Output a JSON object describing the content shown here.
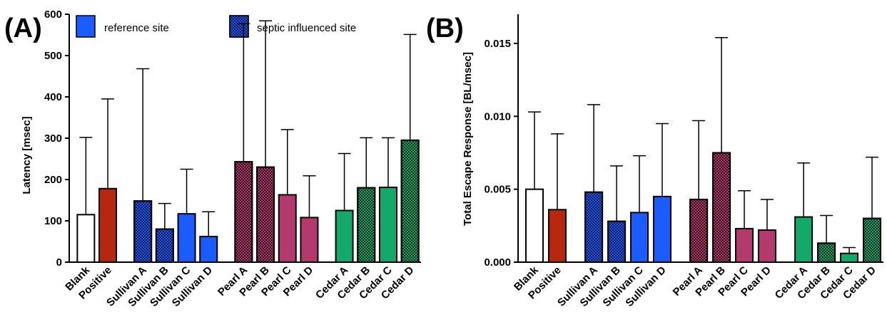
{
  "colors": {
    "blank": "#ffffff",
    "positive": "#b5270f",
    "sullivan": "#1a5cff",
    "pearl": "#b23a6c",
    "cedar": "#14a86b"
  },
  "legend": {
    "reference": "reference site",
    "septic": "septic influenced site"
  },
  "chart_data": [
    {
      "type": "bar",
      "panel": "(A)",
      "ylabel": "Latency [msec]",
      "ylim": [
        0,
        600
      ],
      "yticks": [
        "0",
        "100",
        "200",
        "300",
        "400",
        "500",
        "600"
      ],
      "categories": [
        "Blank",
        "Positive",
        "Sullivan A",
        "Sullivan B",
        "Sullivan C",
        "Sullivan D",
        "Pearl A",
        "Pearl B",
        "Pearl C",
        "Pearl D",
        "Cedar A",
        "Cedar B",
        "Cedar C",
        "Cedar D"
      ],
      "values": [
        115,
        178,
        148,
        80,
        117,
        62,
        243,
        230,
        163,
        108,
        125,
        180,
        181,
        295
      ],
      "errors_upper": [
        302,
        395,
        468,
        142,
        225,
        122,
        577,
        584,
        321,
        209,
        263,
        301,
        301,
        551
      ],
      "groups": [
        "blank",
        "positive",
        "sullivan",
        "sullivan",
        "sullivan",
        "sullivan",
        "pearl",
        "pearl",
        "pearl",
        "pearl",
        "cedar",
        "cedar",
        "cedar",
        "cedar"
      ],
      "septic_influenced": [
        false,
        false,
        true,
        true,
        false,
        false,
        true,
        true,
        false,
        false,
        false,
        true,
        false,
        true
      ],
      "grid": false,
      "legend_position": "top"
    },
    {
      "type": "bar",
      "panel": "(B)",
      "ylabel": "Total Escape Response [BL/msec]",
      "ylim": [
        0,
        0.017
      ],
      "yticks": [
        "0.000",
        "0.005",
        "0.010",
        "0.015"
      ],
      "categories": [
        "Blank",
        "Positive",
        "Sullivan A",
        "Sullivan B",
        "Sullivan C",
        "Sullivan D",
        "Pearl A",
        "Pearl B",
        "Pearl C",
        "Pearl D",
        "Cedar A",
        "Cedar B",
        "Cedar C",
        "Cedar D"
      ],
      "values": [
        0.005,
        0.0036,
        0.0048,
        0.0028,
        0.0034,
        0.0045,
        0.0043,
        0.0075,
        0.0023,
        0.0022,
        0.0031,
        0.0013,
        0.0006,
        0.003
      ],
      "errors_upper": [
        0.0103,
        0.0088,
        0.0108,
        0.0066,
        0.0073,
        0.0095,
        0.0097,
        0.0154,
        0.0049,
        0.0043,
        0.0068,
        0.0032,
        0.001,
        0.0072
      ],
      "groups": [
        "blank",
        "positive",
        "sullivan",
        "sullivan",
        "sullivan",
        "sullivan",
        "pearl",
        "pearl",
        "pearl",
        "pearl",
        "cedar",
        "cedar",
        "cedar",
        "cedar"
      ],
      "septic_influenced": [
        false,
        false,
        true,
        true,
        false,
        false,
        true,
        true,
        false,
        false,
        false,
        true,
        false,
        true
      ],
      "grid": false
    }
  ]
}
